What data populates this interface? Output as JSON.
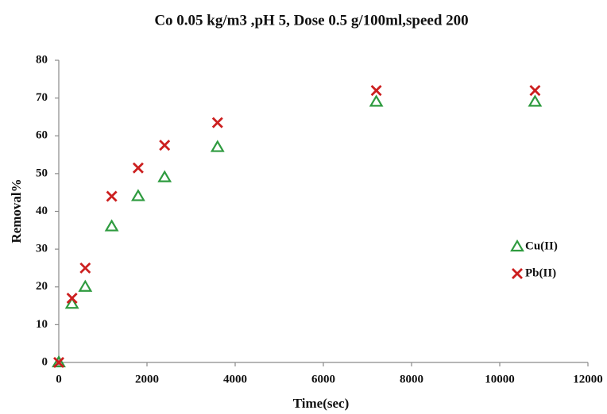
{
  "chart_data": {
    "type": "scatter",
    "title": "Co 0.05 kg/m3 ,pH 5, Dose 0.5 g/100ml,speed 200",
    "x_label": "Time(sec)",
    "y_label": "Removal%",
    "series": [
      {
        "name": "Cu(II)",
        "color": "#2e9b3f",
        "marker": "triangle",
        "x": [
          0,
          300,
          600,
          1200,
          1800,
          2400,
          3600,
          7200,
          10800
        ],
        "values": [
          0,
          15.5,
          20,
          36,
          44,
          49,
          57,
          69,
          69
        ]
      },
      {
        "name": "Pb(II)",
        "color": "#cc1f1f",
        "marker": "x",
        "x": [
          0,
          300,
          600,
          1200,
          1800,
          2400,
          3600,
          7200,
          10800
        ],
        "values": [
          0,
          17,
          25,
          44,
          51.5,
          57.5,
          63.5,
          72,
          72
        ]
      }
    ],
    "xlim": [
      0,
      12000
    ],
    "xticks": [
      0,
      2000,
      4000,
      6000,
      8000,
      10000,
      12000
    ],
    "ylim": [
      0,
      80
    ],
    "yticks": [
      0,
      10,
      20,
      30,
      40,
      50,
      60,
      70,
      80
    ],
    "grid": false,
    "legend": "right"
  }
}
